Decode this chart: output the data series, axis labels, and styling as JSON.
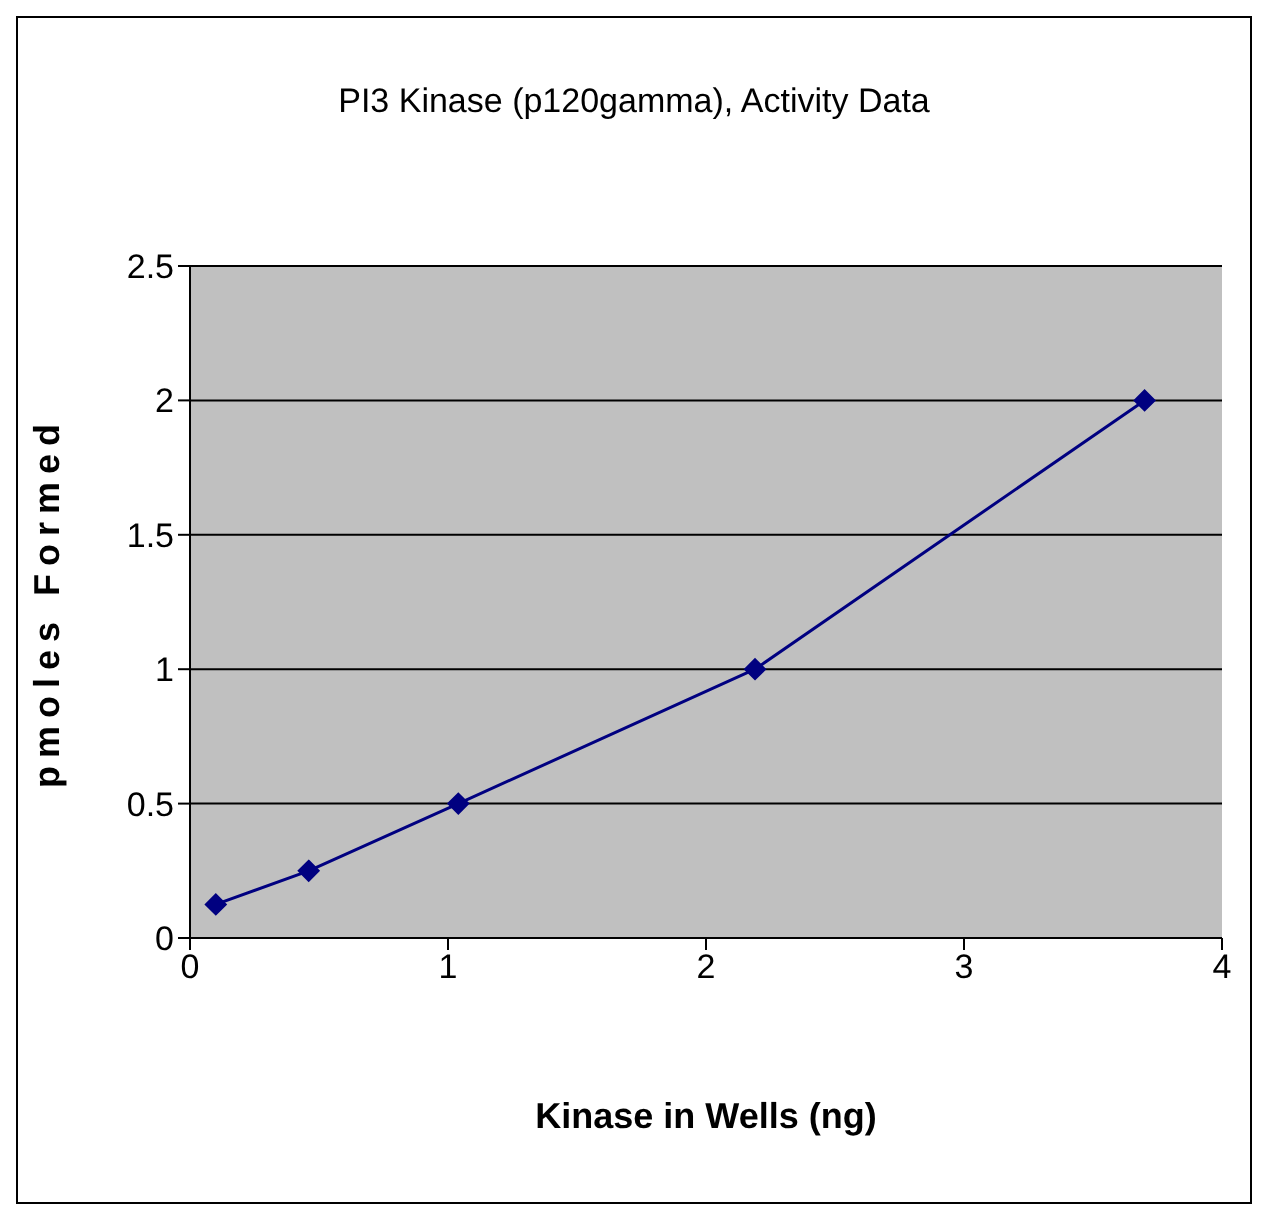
{
  "chart_data": {
    "type": "line",
    "title": "PI3 Kinase (p120gamma), Activity Data",
    "xlabel": "Kinase in Wells (ng)",
    "ylabel": "pmoles Formed",
    "x": [
      0.1,
      0.46,
      1.04,
      2.19,
      3.7
    ],
    "series": [
      {
        "color": "#000080",
        "values": [
          0.125,
          0.25,
          0.5,
          1.0,
          2.0
        ]
      }
    ],
    "xlim": [
      0,
      4
    ],
    "xticks": [
      0,
      1,
      2,
      3,
      4
    ],
    "ylim": [
      0,
      2.5
    ],
    "yticks": [
      0,
      0.5,
      1,
      1.5,
      2,
      2.5
    ],
    "grid": "y",
    "legend": false,
    "marker": "diamond",
    "line_style": "solid"
  }
}
